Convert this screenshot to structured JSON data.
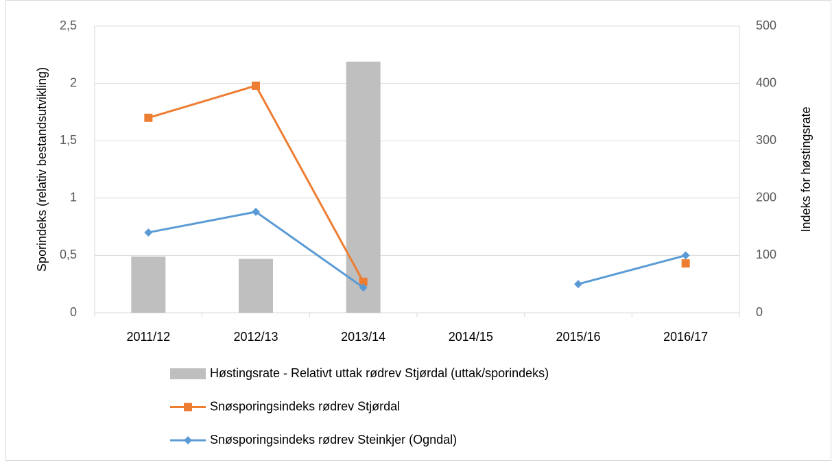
{
  "chart_data": {
    "type": "bar-line",
    "categories": [
      "2011/12",
      "2012/13",
      "2013/14",
      "2014/15",
      "2015/16",
      "2016/17"
    ],
    "ylabel": "Sporindeks  (relativ bestandsutvikling)",
    "y2label": "Indeks for høstingsrate",
    "ylim": [
      0,
      2.5
    ],
    "yticks": [
      0,
      {
        "value": 0.5,
        "label": "0,5"
      },
      1,
      {
        "value": 1.5,
        "label": "1,5"
      },
      2,
      {
        "value": 2.5,
        "label": "2,5"
      }
    ],
    "y2lim": [
      0,
      500
    ],
    "y2ticks": [
      0,
      100,
      200,
      300,
      400,
      500
    ],
    "grid": true,
    "legend": "bottom",
    "series": [
      {
        "name": "Høstingsrate - Relativt uttak rødrev Stjørdal (uttak/sporindeks)",
        "type": "bar",
        "axis": "y2",
        "color": "#bfbfbf",
        "values": [
          98,
          94,
          438,
          null,
          null,
          null
        ]
      },
      {
        "name": "Snøsporingsindeks rødrev Stjørdal",
        "type": "line",
        "marker": "square",
        "color": "#ed7d31",
        "values": [
          1.7,
          1.98,
          0.27,
          null,
          null,
          0.43
        ]
      },
      {
        "name": "Snøsporingsindeks rødrev Steinkjer (Ogndal)",
        "type": "line",
        "marker": "diamond",
        "color": "#5b9bd5",
        "values": [
          0.7,
          0.88,
          0.22,
          null,
          0.25,
          0.5
        ]
      }
    ]
  }
}
